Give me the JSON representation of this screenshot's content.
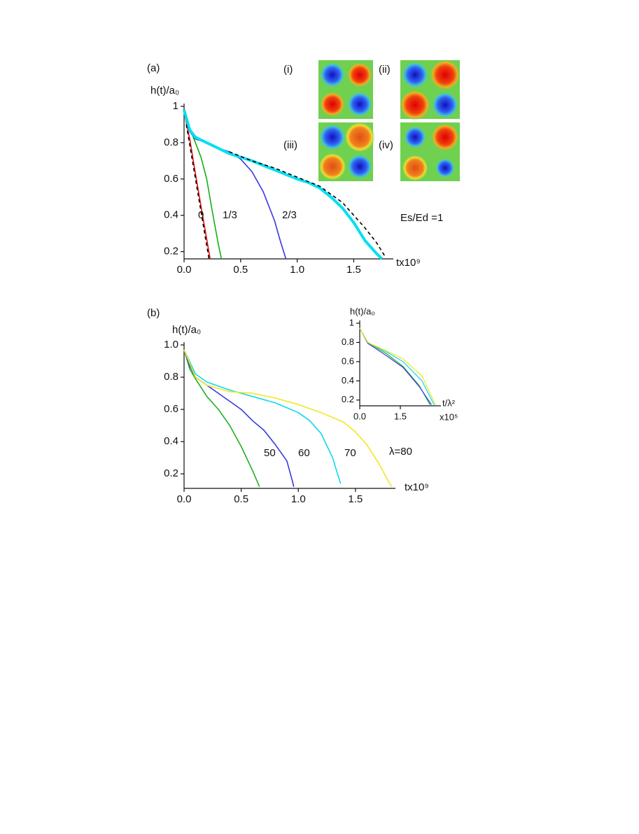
{
  "chart_data": [
    {
      "type": "line",
      "panel_label": "(a)",
      "ylabel": "h(t)/a₀",
      "xlabel": "tx10⁹",
      "xlim": [
        0,
        1.85
      ],
      "ylim": [
        0.16,
        1
      ],
      "xticks": [
        {
          "value": 0,
          "label": "0.0"
        },
        0.5,
        {
          "value": 1,
          "label": "1.0"
        },
        1.5
      ],
      "yticks": [
        0.2,
        0.4,
        0.6,
        0.8,
        1
      ],
      "insets": [
        {
          "label": "(i)"
        },
        {
          "label": "(ii)"
        },
        {
          "label": "(iii)"
        },
        {
          "label": "(iv)"
        }
      ],
      "series": [
        {
          "name": "0",
          "color": "#e01010",
          "x": [
            0,
            0.05,
            0.1,
            0.15,
            0.2,
            0.23
          ],
          "values": [
            0.97,
            0.82,
            0.63,
            0.45,
            0.27,
            0.16
          ]
        },
        {
          "name": "1/3",
          "color": "#10b010",
          "x": [
            0,
            0.05,
            0.1,
            0.15,
            0.2,
            0.25,
            0.3,
            0.33
          ],
          "values": [
            0.97,
            0.88,
            0.8,
            0.72,
            0.6,
            0.42,
            0.25,
            0.16
          ]
        },
        {
          "name": "2/3",
          "color": "#3838e0",
          "x": [
            0,
            0.05,
            0.1,
            0.2,
            0.3,
            0.4,
            0.5,
            0.6,
            0.7,
            0.8,
            0.85,
            0.9
          ],
          "values": [
            0.97,
            0.86,
            0.82,
            0.8,
            0.77,
            0.75,
            0.71,
            0.64,
            0.53,
            0.37,
            0.26,
            0.16
          ]
        },
        {
          "name": "Es/Ed =1",
          "color": "#00e0f0",
          "x": [
            0,
            0.05,
            0.1,
            0.2,
            0.3,
            0.4,
            0.6,
            0.8,
            1.0,
            1.1,
            1.2,
            1.3,
            1.4,
            1.5,
            1.6,
            1.7,
            1.75
          ],
          "values": [
            0.98,
            0.87,
            0.83,
            0.8,
            0.77,
            0.74,
            0.7,
            0.65,
            0.6,
            0.58,
            0.55,
            0.5,
            0.44,
            0.36,
            0.26,
            0.19,
            0.16
          ],
          "width": 4
        },
        {
          "color": "#000000",
          "x": [
            0.02,
            0.22
          ],
          "values": [
            0.9,
            0.16
          ],
          "dashed": true
        },
        {
          "color": "#000000",
          "x": [
            0.4,
            0.6,
            0.8,
            1.0,
            1.2,
            1.4,
            1.6,
            1.7,
            1.78
          ],
          "values": [
            0.75,
            0.7,
            0.66,
            0.61,
            0.56,
            0.47,
            0.33,
            0.25,
            0.17
          ],
          "dashed": true
        }
      ]
    },
    {
      "type": "line",
      "panel_label": "(b)",
      "ylabel": "h(t)/a₀",
      "xlabel": "tx10⁹",
      "xlim": [
        0,
        1.85
      ],
      "ylim": [
        0.11,
        1
      ],
      "xticks": [
        {
          "value": 0,
          "label": "0.0"
        },
        0.5,
        {
          "value": 1,
          "label": "1.0"
        },
        1.5
      ],
      "yticks": [
        0.2,
        0.4,
        0.6,
        0.8,
        {
          "value": 1,
          "label": "1.0"
        }
      ],
      "series": [
        {
          "name": "50",
          "color": "#20b020",
          "x": [
            0,
            0.05,
            0.1,
            0.2,
            0.3,
            0.4,
            0.5,
            0.6,
            0.66
          ],
          "values": [
            0.97,
            0.85,
            0.79,
            0.68,
            0.6,
            0.5,
            0.37,
            0.22,
            0.12
          ]
        },
        {
          "name": "60",
          "color": "#3838e0",
          "x": [
            0,
            0.05,
            0.1,
            0.2,
            0.3,
            0.4,
            0.5,
            0.6,
            0.7,
            0.8,
            0.9,
            0.95,
            0.96
          ],
          "values": [
            0.97,
            0.87,
            0.8,
            0.75,
            0.7,
            0.65,
            0.6,
            0.53,
            0.47,
            0.38,
            0.28,
            0.15,
            0.12
          ]
        },
        {
          "name": "70",
          "color": "#10d8f0",
          "x": [
            0,
            0.1,
            0.2,
            0.4,
            0.6,
            0.8,
            1.0,
            1.1,
            1.2,
            1.3,
            1.37
          ],
          "values": [
            0.97,
            0.82,
            0.77,
            0.72,
            0.68,
            0.64,
            0.58,
            0.53,
            0.45,
            0.3,
            0.14
          ]
        },
        {
          "name": "λ=80",
          "color": "#f0e820",
          "x": [
            0,
            0.1,
            0.2,
            0.4,
            0.6,
            0.8,
            1.0,
            1.2,
            1.4,
            1.5,
            1.6,
            1.7,
            1.8,
            1.82
          ],
          "values": [
            0.97,
            0.8,
            0.75,
            0.71,
            0.7,
            0.67,
            0.63,
            0.58,
            0.52,
            0.46,
            0.38,
            0.27,
            0.14,
            0.12
          ]
        }
      ]
    },
    {
      "type": "line",
      "ylabel": "h(t)/a₀",
      "xlabel": "t/λ²",
      "xscale_note": "x10⁵",
      "xlim": [
        0,
        3
      ],
      "ylim": [
        0.14,
        1
      ],
      "xticks": [
        {
          "value": 0,
          "label": "0.0"
        },
        1.5
      ],
      "yticks": [
        0.2,
        0.4,
        0.6,
        0.8,
        1
      ],
      "series": [
        {
          "color": "#20b020",
          "x": [
            0,
            0.3,
            1.0,
            1.6,
            2.2,
            2.6
          ],
          "values": [
            0.95,
            0.8,
            0.68,
            0.55,
            0.35,
            0.15
          ]
        },
        {
          "color": "#3838e0",
          "x": [
            0,
            0.3,
            1.0,
            1.6,
            2.2,
            2.65
          ],
          "values": [
            0.95,
            0.79,
            0.66,
            0.54,
            0.34,
            0.15
          ]
        },
        {
          "color": "#10d8f0",
          "x": [
            0,
            0.3,
            1.0,
            1.6,
            2.3,
            2.75
          ],
          "values": [
            0.95,
            0.8,
            0.7,
            0.6,
            0.4,
            0.15
          ]
        },
        {
          "color": "#f0e820",
          "x": [
            0,
            0.3,
            1.0,
            1.6,
            2.3,
            2.8
          ],
          "values": [
            0.95,
            0.8,
            0.71,
            0.63,
            0.45,
            0.15
          ]
        }
      ]
    }
  ]
}
